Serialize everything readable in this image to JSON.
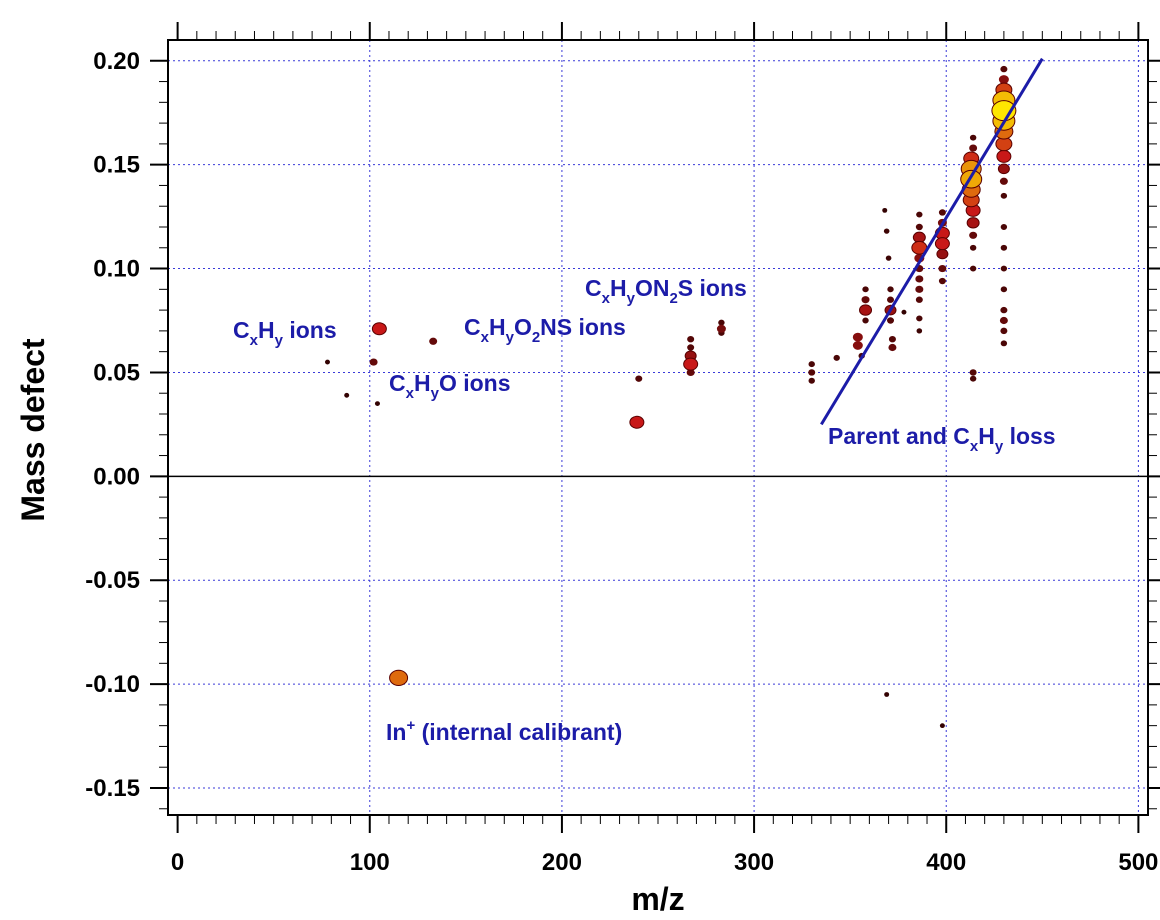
{
  "chart_data": {
    "type": "scatter",
    "xlabel": "m/z",
    "ylabel": "Mass defect",
    "xlim": [
      -5,
      505
    ],
    "ylim": [
      -0.163,
      0.21
    ],
    "xticks": [
      0,
      100,
      200,
      300,
      400,
      500
    ],
    "xtick_labels": [
      "0",
      "100",
      "200",
      "300",
      "400",
      "500"
    ],
    "yticks": [
      -0.15,
      -0.1,
      -0.05,
      0.0,
      0.05,
      0.1,
      0.15,
      0.2
    ],
    "ytick_labels": [
      "-0.15",
      "-0.10",
      "-0.05",
      "0.00",
      "0.05",
      "0.10",
      "0.15",
      "0.20"
    ],
    "grid": "dotted",
    "fit_line": {
      "x": [
        335,
        450
      ],
      "y": [
        0.025,
        0.201
      ]
    },
    "annotations": {
      "cxhy": "C|x|H|y| ions",
      "cxhyo": "C|x|H|y|O ions",
      "cxhyo2ns": "C|x|H|y|O|2|NS ions",
      "cxhyon2s": "C|x|H|y|ON|2|S ions",
      "parent": "Parent and C|x|H|y| loss",
      "indium": "In|+| (internal calibrant)"
    },
    "points": [
      {
        "x": 78,
        "y": 0.055,
        "i": 0.05
      },
      {
        "x": 88,
        "y": 0.039,
        "i": 0.05
      },
      {
        "x": 104,
        "y": 0.035,
        "i": 0.05
      },
      {
        "x": 102,
        "y": 0.055,
        "i": 0.2
      },
      {
        "x": 105,
        "y": 0.071,
        "i": 0.5
      },
      {
        "x": 133,
        "y": 0.065,
        "i": 0.2
      },
      {
        "x": 115,
        "y": -0.097,
        "i": 0.7
      },
      {
        "x": 239,
        "y": 0.026,
        "i": 0.5
      },
      {
        "x": 240,
        "y": 0.047,
        "i": 0.15
      },
      {
        "x": 267,
        "y": 0.066,
        "i": 0.15
      },
      {
        "x": 267,
        "y": 0.062,
        "i": 0.15
      },
      {
        "x": 267,
        "y": 0.058,
        "i": 0.35
      },
      {
        "x": 267,
        "y": 0.054,
        "i": 0.5
      },
      {
        "x": 267,
        "y": 0.05,
        "i": 0.2
      },
      {
        "x": 283,
        "y": 0.074,
        "i": 0.12
      },
      {
        "x": 283,
        "y": 0.071,
        "i": 0.25
      },
      {
        "x": 283,
        "y": 0.069,
        "i": 0.12
      },
      {
        "x": 330,
        "y": 0.054,
        "i": 0.12
      },
      {
        "x": 330,
        "y": 0.05,
        "i": 0.15
      },
      {
        "x": 330,
        "y": 0.046,
        "i": 0.12
      },
      {
        "x": 343,
        "y": 0.057,
        "i": 0.12
      },
      {
        "x": 354,
        "y": 0.067,
        "i": 0.3
      },
      {
        "x": 354,
        "y": 0.063,
        "i": 0.3
      },
      {
        "x": 356,
        "y": 0.058,
        "i": 0.12
      },
      {
        "x": 358,
        "y": 0.09,
        "i": 0.12
      },
      {
        "x": 358,
        "y": 0.085,
        "i": 0.2
      },
      {
        "x": 358,
        "y": 0.08,
        "i": 0.4
      },
      {
        "x": 358,
        "y": 0.075,
        "i": 0.12
      },
      {
        "x": 368,
        "y": 0.128,
        "i": 0.05
      },
      {
        "x": 369,
        "y": 0.118,
        "i": 0.08
      },
      {
        "x": 370,
        "y": 0.105,
        "i": 0.08
      },
      {
        "x": 369,
        "y": -0.105,
        "i": 0.05
      },
      {
        "x": 371,
        "y": 0.09,
        "i": 0.12
      },
      {
        "x": 371,
        "y": 0.085,
        "i": 0.15
      },
      {
        "x": 371,
        "y": 0.08,
        "i": 0.35
      },
      {
        "x": 371,
        "y": 0.075,
        "i": 0.15
      },
      {
        "x": 372,
        "y": 0.066,
        "i": 0.15
      },
      {
        "x": 372,
        "y": 0.062,
        "i": 0.2
      },
      {
        "x": 378,
        "y": 0.079,
        "i": 0.05
      },
      {
        "x": 386,
        "y": 0.126,
        "i": 0.12
      },
      {
        "x": 386,
        "y": 0.12,
        "i": 0.15
      },
      {
        "x": 386,
        "y": 0.115,
        "i": 0.4
      },
      {
        "x": 386,
        "y": 0.11,
        "i": 0.55
      },
      {
        "x": 386,
        "y": 0.105,
        "i": 0.3
      },
      {
        "x": 386,
        "y": 0.1,
        "i": 0.2
      },
      {
        "x": 386,
        "y": 0.095,
        "i": 0.2
      },
      {
        "x": 386,
        "y": 0.09,
        "i": 0.2
      },
      {
        "x": 386,
        "y": 0.085,
        "i": 0.15
      },
      {
        "x": 386,
        "y": 0.076,
        "i": 0.12
      },
      {
        "x": 386,
        "y": 0.07,
        "i": 0.08
      },
      {
        "x": 398,
        "y": 0.127,
        "i": 0.15
      },
      {
        "x": 398,
        "y": 0.122,
        "i": 0.25
      },
      {
        "x": 398,
        "y": 0.117,
        "i": 0.5
      },
      {
        "x": 398,
        "y": 0.112,
        "i": 0.5
      },
      {
        "x": 398,
        "y": 0.107,
        "i": 0.35
      },
      {
        "x": 398,
        "y": 0.1,
        "i": 0.2
      },
      {
        "x": 398,
        "y": 0.094,
        "i": 0.15
      },
      {
        "x": 398,
        "y": -0.12,
        "i": 0.05
      },
      {
        "x": 414,
        "y": 0.163,
        "i": 0.12
      },
      {
        "x": 414,
        "y": 0.158,
        "i": 0.2
      },
      {
        "x": 413,
        "y": 0.153,
        "i": 0.55
      },
      {
        "x": 413,
        "y": 0.148,
        "i": 0.8
      },
      {
        "x": 413,
        "y": 0.143,
        "i": 0.85
      },
      {
        "x": 413,
        "y": 0.138,
        "i": 0.7
      },
      {
        "x": 413,
        "y": 0.133,
        "i": 0.6
      },
      {
        "x": 414,
        "y": 0.128,
        "i": 0.5
      },
      {
        "x": 414,
        "y": 0.122,
        "i": 0.4
      },
      {
        "x": 414,
        "y": 0.116,
        "i": 0.2
      },
      {
        "x": 414,
        "y": 0.11,
        "i": 0.12
      },
      {
        "x": 414,
        "y": 0.1,
        "i": 0.12
      },
      {
        "x": 414,
        "y": 0.05,
        "i": 0.15
      },
      {
        "x": 414,
        "y": 0.047,
        "i": 0.12
      },
      {
        "x": 430,
        "y": 0.196,
        "i": 0.15
      },
      {
        "x": 430,
        "y": 0.191,
        "i": 0.3
      },
      {
        "x": 430,
        "y": 0.186,
        "i": 0.6
      },
      {
        "x": 430,
        "y": 0.181,
        "i": 0.9
      },
      {
        "x": 430,
        "y": 0.176,
        "i": 1.0
      },
      {
        "x": 430,
        "y": 0.171,
        "i": 0.9
      },
      {
        "x": 430,
        "y": 0.166,
        "i": 0.7
      },
      {
        "x": 430,
        "y": 0.16,
        "i": 0.6
      },
      {
        "x": 430,
        "y": 0.154,
        "i": 0.5
      },
      {
        "x": 430,
        "y": 0.148,
        "i": 0.35
      },
      {
        "x": 430,
        "y": 0.142,
        "i": 0.2
      },
      {
        "x": 430,
        "y": 0.135,
        "i": 0.12
      },
      {
        "x": 430,
        "y": 0.12,
        "i": 0.12
      },
      {
        "x": 430,
        "y": 0.11,
        "i": 0.12
      },
      {
        "x": 430,
        "y": 0.1,
        "i": 0.12
      },
      {
        "x": 430,
        "y": 0.09,
        "i": 0.12
      },
      {
        "x": 430,
        "y": 0.08,
        "i": 0.15
      },
      {
        "x": 430,
        "y": 0.075,
        "i": 0.2
      },
      {
        "x": 430,
        "y": 0.07,
        "i": 0.15
      },
      {
        "x": 430,
        "y": 0.064,
        "i": 0.12
      }
    ],
    "colors": {
      "fit_line": "#1c1ca8",
      "annotation": "#1c1ca8",
      "grid": "#3a3ad8",
      "zero_line": "#000000",
      "marker_low": "#220000",
      "marker_mid": "#c81818",
      "marker_high": "#ffe600"
    }
  }
}
